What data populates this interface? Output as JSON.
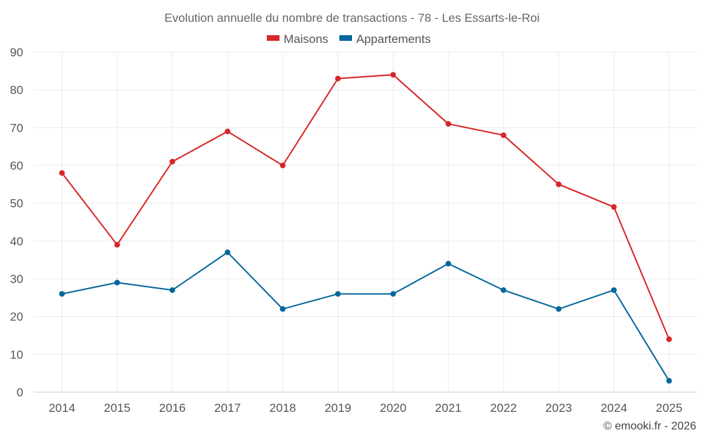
{
  "chart_data": {
    "type": "line",
    "title": "Evolution annuelle du nombre de transactions - 78 - Les Essarts-le-Roi",
    "categories": [
      "2014",
      "2015",
      "2016",
      "2017",
      "2018",
      "2019",
      "2020",
      "2021",
      "2022",
      "2023",
      "2024",
      "2025"
    ],
    "series": [
      {
        "name": "Maisons",
        "color": "#d62728",
        "values": [
          58,
          39,
          61,
          69,
          60,
          83,
          84,
          71,
          68,
          55,
          49,
          14
        ]
      },
      {
        "name": "Appartements",
        "color": "#04679b",
        "values": [
          26,
          29,
          27,
          37,
          22,
          26,
          26,
          34,
          27,
          22,
          27,
          3
        ]
      }
    ],
    "ylim": [
      0,
      90
    ],
    "yticks": [
      0,
      10,
      20,
      30,
      40,
      50,
      60,
      70,
      80,
      90
    ],
    "xlabel": "",
    "ylabel": "",
    "grid": true,
    "legend": "top-center"
  },
  "credit": "© emooki.fr - 2026"
}
